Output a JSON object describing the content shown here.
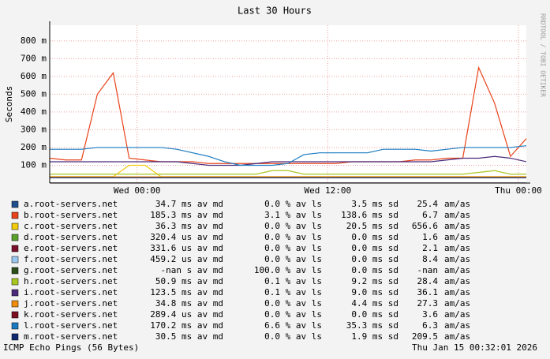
{
  "chart_data": {
    "type": "line",
    "title": "Last 30 Hours",
    "ylabel": "Seconds",
    "watermark": "RRDTOOL / TOBI OETIKER",
    "footer_left": "ICMP Echo Pings (56 Bytes)",
    "footer_right": "Thu Jan 15 00:32:01 2026",
    "xlim": [
      0,
      30
    ],
    "xticks": [
      {
        "value": 5.5,
        "label": "Wed 00:00"
      },
      {
        "value": 17.5,
        "label": "Wed 12:00"
      },
      {
        "value": 29.5,
        "label": "Thu 00:00"
      }
    ],
    "ylim": [
      0,
      0.888
    ],
    "yticks": [
      {
        "value": 0.1,
        "label": "100 m"
      },
      {
        "value": 0.2,
        "label": "200 m"
      },
      {
        "value": 0.3,
        "label": "300 m"
      },
      {
        "value": 0.4,
        "label": "400 m"
      },
      {
        "value": 0.5,
        "label": "500 m"
      },
      {
        "value": 0.6,
        "label": "600 m"
      },
      {
        "value": 0.7,
        "label": "700 m"
      },
      {
        "value": 0.8,
        "label": "800 m"
      }
    ],
    "grid": true,
    "x": [
      0,
      1,
      2,
      3,
      4,
      5,
      6,
      7,
      8,
      9,
      10,
      11,
      12,
      13,
      14,
      15,
      16,
      17,
      18,
      19,
      20,
      21,
      22,
      23,
      24,
      25,
      26,
      27,
      28,
      29,
      30
    ],
    "series": [
      {
        "name": "a.root-servers.net",
        "color": "#1f4e8c",
        "stats": [
          "34.7 ms av md",
          "0.0 % av ls",
          "3.5 ms sd",
          "25.4",
          "am/as"
        ],
        "values": [
          0.035,
          0.035,
          0.035,
          0.035,
          0.035,
          0.035,
          0.035,
          0.035,
          0.035,
          0.035,
          0.035,
          0.035,
          0.035,
          0.035,
          0.035,
          0.035,
          0.035,
          0.035,
          0.035,
          0.035,
          0.035,
          0.035,
          0.035,
          0.035,
          0.035,
          0.035,
          0.035,
          0.035,
          0.035,
          0.035,
          0.035
        ]
      },
      {
        "name": "b.root-servers.net",
        "color": "#e8431a",
        "stats": [
          "185.3 ms av md",
          "3.1 % av ls",
          "138.6 ms sd",
          "6.7",
          "am/as"
        ],
        "values": [
          0.14,
          0.13,
          0.13,
          0.5,
          0.62,
          0.14,
          0.13,
          0.12,
          0.12,
          0.12,
          0.11,
          0.11,
          0.11,
          0.11,
          0.11,
          0.11,
          0.11,
          0.11,
          0.11,
          0.12,
          0.12,
          0.12,
          0.12,
          0.13,
          0.13,
          0.14,
          0.14,
          0.65,
          0.45,
          0.15,
          0.25
        ]
      },
      {
        "name": "c.root-servers.net",
        "color": "#f2cc0c",
        "stats": [
          "36.3 ms av md",
          "0.0 % av ls",
          "20.5 ms sd",
          "656.6",
          "am/as"
        ],
        "values": [
          0.036,
          0.036,
          0.036,
          0.036,
          0.036,
          0.1,
          0.1,
          0.036,
          0.036,
          0.036,
          0.036,
          0.036,
          0.036,
          0.036,
          0.036,
          0.036,
          0.036,
          0.036,
          0.036,
          0.036,
          0.036,
          0.036,
          0.036,
          0.036,
          0.036,
          0.036,
          0.036,
          0.036,
          0.036,
          0.036,
          0.036
        ]
      },
      {
        "name": "d.root-servers.net",
        "color": "#5aa02c",
        "stats": [
          "320.4 us av md",
          "0.0 % av ls",
          "0.0 ms sd",
          "1.6",
          "am/as"
        ],
        "values": [
          0.0003,
          0.0003,
          0.0003,
          0.0003,
          0.0003,
          0.0003,
          0.0003,
          0.0003,
          0.0003,
          0.0003,
          0.0003,
          0.0003,
          0.0003,
          0.0003,
          0.0003,
          0.0003,
          0.0003,
          0.0003,
          0.0003,
          0.0003,
          0.0003,
          0.0003,
          0.0003,
          0.0003,
          0.0003,
          0.0003,
          0.0003,
          0.0003,
          0.0003,
          0.0003,
          0.0003
        ]
      },
      {
        "name": "e.root-servers.net",
        "color": "#7a0f2a",
        "stats": [
          "331.6 us av md",
          "0.0 % av ls",
          "0.0 ms sd",
          "2.1",
          "am/as"
        ],
        "values": [
          0.0003,
          0.0003,
          0.0003,
          0.0003,
          0.0003,
          0.0003,
          0.0003,
          0.0003,
          0.0003,
          0.0003,
          0.0003,
          0.0003,
          0.0003,
          0.0003,
          0.0003,
          0.0003,
          0.0003,
          0.0003,
          0.0003,
          0.0003,
          0.0003,
          0.0003,
          0.0003,
          0.0003,
          0.0003,
          0.0003,
          0.0003,
          0.0003,
          0.0003,
          0.0003,
          0.0003
        ]
      },
      {
        "name": "f.root-servers.net",
        "color": "#98c8f0",
        "stats": [
          "459.2 us av md",
          "0.0 % av ls",
          "0.0 ms sd",
          "8.4",
          "am/as"
        ],
        "values": [
          0.0005,
          0.0005,
          0.0005,
          0.0005,
          0.0005,
          0.0005,
          0.0005,
          0.0005,
          0.0005,
          0.0005,
          0.0005,
          0.0005,
          0.0005,
          0.0005,
          0.0005,
          0.0005,
          0.0005,
          0.0005,
          0.0005,
          0.0005,
          0.0005,
          0.0005,
          0.0005,
          0.0005,
          0.0005,
          0.0005,
          0.0005,
          0.0005,
          0.0005,
          0.0005,
          0.0005
        ]
      },
      {
        "name": "g.root-servers.net",
        "color": "#2a4d1a",
        "stats": [
          "-nan  s av md",
          "100.0 % av ls",
          "0.0 ms sd",
          "-nan",
          "am/as"
        ],
        "values": [
          null,
          null,
          null,
          null,
          null,
          null,
          null,
          null,
          null,
          null,
          null,
          null,
          null,
          null,
          null,
          null,
          null,
          null,
          null,
          null,
          null,
          null,
          null,
          null,
          null,
          null,
          null,
          null,
          null,
          null,
          null
        ]
      },
      {
        "name": "h.root-servers.net",
        "color": "#a8c820",
        "stats": [
          "50.9 ms av md",
          "0.1 % av ls",
          "9.2 ms sd",
          "28.4",
          "am/as"
        ],
        "values": [
          0.05,
          0.05,
          0.05,
          0.05,
          0.05,
          0.05,
          0.05,
          0.05,
          0.05,
          0.05,
          0.05,
          0.05,
          0.05,
          0.05,
          0.07,
          0.07,
          0.05,
          0.05,
          0.05,
          0.05,
          0.05,
          0.05,
          0.05,
          0.05,
          0.05,
          0.05,
          0.05,
          0.06,
          0.07,
          0.05,
          0.05
        ]
      },
      {
        "name": "i.root-servers.net",
        "color": "#4a2a7a",
        "stats": [
          "123.5 ms av md",
          "0.1 % av ls",
          "9.0 ms sd",
          "36.1",
          "am/as"
        ],
        "values": [
          0.12,
          0.12,
          0.12,
          0.12,
          0.12,
          0.12,
          0.12,
          0.12,
          0.12,
          0.11,
          0.1,
          0.1,
          0.1,
          0.11,
          0.12,
          0.12,
          0.12,
          0.12,
          0.12,
          0.12,
          0.12,
          0.12,
          0.12,
          0.12,
          0.12,
          0.13,
          0.14,
          0.14,
          0.15,
          0.14,
          0.12
        ]
      },
      {
        "name": "j.root-servers.net",
        "color": "#f08c10",
        "stats": [
          "34.8 ms av md",
          "0.0 % av ls",
          "4.4 ms sd",
          "27.3",
          "am/as"
        ],
        "values": [
          0.035,
          0.035,
          0.035,
          0.035,
          0.035,
          0.035,
          0.035,
          0.035,
          0.035,
          0.035,
          0.035,
          0.035,
          0.035,
          0.035,
          0.035,
          0.035,
          0.035,
          0.035,
          0.035,
          0.035,
          0.035,
          0.035,
          0.035,
          0.035,
          0.035,
          0.035,
          0.035,
          0.035,
          0.035,
          0.035,
          0.035
        ]
      },
      {
        "name": "k.root-servers.net",
        "color": "#7a1020",
        "stats": [
          "289.4 us av md",
          "0.0 % av ls",
          "0.0 ms sd",
          "3.6",
          "am/as"
        ],
        "values": [
          0.0003,
          0.0003,
          0.0003,
          0.0003,
          0.0003,
          0.0003,
          0.0003,
          0.0003,
          0.0003,
          0.0003,
          0.0003,
          0.0003,
          0.0003,
          0.0003,
          0.0003,
          0.0003,
          0.0003,
          0.0003,
          0.0003,
          0.0003,
          0.0003,
          0.0003,
          0.0003,
          0.0003,
          0.0003,
          0.0003,
          0.0003,
          0.0003,
          0.0003,
          0.0003,
          0.0003
        ]
      },
      {
        "name": "l.root-servers.net",
        "color": "#1a7ac0",
        "stats": [
          "170.2 ms av md",
          "6.6 % av ls",
          "35.3 ms sd",
          "6.3",
          "am/as"
        ],
        "values": [
          0.19,
          0.19,
          0.19,
          0.2,
          0.2,
          0.2,
          0.2,
          0.2,
          0.19,
          0.17,
          0.15,
          0.12,
          0.1,
          0.1,
          0.1,
          0.11,
          0.16,
          0.17,
          0.17,
          0.17,
          0.17,
          0.19,
          0.19,
          0.19,
          0.18,
          0.19,
          0.2,
          0.2,
          0.2,
          0.2,
          0.21
        ]
      },
      {
        "name": "m.root-servers.net",
        "color": "#102870",
        "stats": [
          "30.5 ms av md",
          "0.0 % av ls",
          "1.9 ms sd",
          "209.5",
          "am/as"
        ],
        "values": [
          0.03,
          0.03,
          0.03,
          0.03,
          0.03,
          0.03,
          0.03,
          0.03,
          0.03,
          0.03,
          0.03,
          0.03,
          0.03,
          0.03,
          0.03,
          0.03,
          0.03,
          0.03,
          0.03,
          0.03,
          0.03,
          0.03,
          0.03,
          0.03,
          0.03,
          0.03,
          0.03,
          0.03,
          0.03,
          0.03,
          0.03
        ]
      }
    ]
  }
}
